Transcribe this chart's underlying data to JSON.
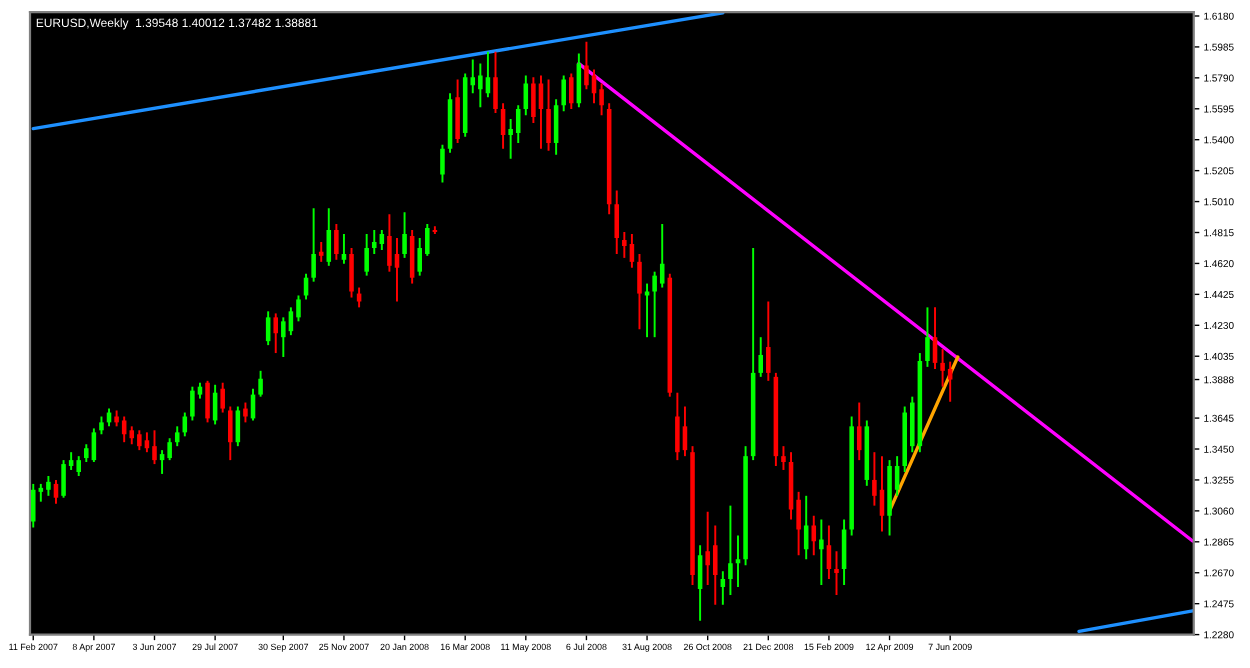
{
  "chart_data": {
    "type": "candlestick",
    "title": "EURUSD,Weekly  1.39548 1.40012 1.37482 1.38881",
    "x": [
      "2007-02-11",
      "2007-02-18",
      "2007-02-25",
      "2007-03-04",
      "2007-03-11",
      "2007-03-18",
      "2007-03-25",
      "2007-04-01",
      "2007-04-08",
      "2007-04-15",
      "2007-04-22",
      "2007-04-29",
      "2007-05-06",
      "2007-05-13",
      "2007-05-20",
      "2007-05-27",
      "2007-06-03",
      "2007-06-10",
      "2007-06-17",
      "2007-06-24",
      "2007-07-01",
      "2007-07-08",
      "2007-07-15",
      "2007-07-22",
      "2007-07-29",
      "2007-08-05",
      "2007-08-12",
      "2007-08-19",
      "2007-08-26",
      "2007-09-02",
      "2007-09-09",
      "2007-09-16",
      "2007-09-23",
      "2007-09-30",
      "2007-10-07",
      "2007-10-14",
      "2007-10-21",
      "2007-10-28",
      "2007-11-04",
      "2007-11-11",
      "2007-11-18",
      "2007-11-25",
      "2007-12-02",
      "2007-12-09",
      "2007-12-16",
      "2007-12-23",
      "2007-12-30",
      "2008-01-06",
      "2008-01-13",
      "2008-01-20",
      "2008-01-27",
      "2008-02-03",
      "2008-02-10",
      "2008-02-17",
      "2008-02-24",
      "2008-03-02",
      "2008-03-09",
      "2008-03-16",
      "2008-03-23",
      "2008-03-30",
      "2008-04-06",
      "2008-04-13",
      "2008-04-20",
      "2008-04-27",
      "2008-05-04",
      "2008-05-11",
      "2008-05-18",
      "2008-05-25",
      "2008-06-01",
      "2008-06-08",
      "2008-06-15",
      "2008-06-22",
      "2008-06-29",
      "2008-07-06",
      "2008-07-13",
      "2008-07-20",
      "2008-07-27",
      "2008-08-03",
      "2008-08-10",
      "2008-08-17",
      "2008-08-24",
      "2008-08-31",
      "2008-09-07",
      "2008-09-14",
      "2008-09-21",
      "2008-09-28",
      "2008-10-05",
      "2008-10-12",
      "2008-10-19",
      "2008-10-26",
      "2008-11-02",
      "2008-11-09",
      "2008-11-16",
      "2008-11-23",
      "2008-11-30",
      "2008-12-07",
      "2008-12-14",
      "2008-12-21",
      "2008-12-28",
      "2009-01-04",
      "2009-01-11",
      "2009-01-18",
      "2009-01-25",
      "2009-02-01",
      "2009-02-08",
      "2009-02-15",
      "2009-02-22",
      "2009-03-01",
      "2009-03-08",
      "2009-03-15",
      "2009-03-22",
      "2009-03-29",
      "2009-04-05",
      "2009-04-12",
      "2009-04-19",
      "2009-04-26",
      "2009-05-03",
      "2009-05-10",
      "2009-05-17",
      "2009-05-24",
      "2009-05-31",
      "2009-06-07"
    ],
    "ohlc": [
      [
        1.2993,
        1.323,
        1.2955,
        1.3193
      ],
      [
        1.318,
        1.323,
        1.3118,
        1.3205
      ],
      [
        1.3193,
        1.328,
        1.3155,
        1.3243
      ],
      [
        1.323,
        1.3255,
        1.3105,
        1.3143
      ],
      [
        1.3155,
        1.338,
        1.3143,
        1.3355
      ],
      [
        1.3343,
        1.343,
        1.3318,
        1.338
      ],
      [
        1.3305,
        1.3405,
        1.328,
        1.338
      ],
      [
        1.3393,
        1.348,
        1.3368,
        1.3455
      ],
      [
        1.338,
        1.358,
        1.3368,
        1.3555
      ],
      [
        1.3568,
        1.3655,
        1.3543,
        1.3618
      ],
      [
        1.3618,
        1.3705,
        1.3593,
        1.368
      ],
      [
        1.3655,
        1.3693,
        1.3593,
        1.3618
      ],
      [
        1.363,
        1.3655,
        1.3493,
        1.3543
      ],
      [
        1.3568,
        1.3593,
        1.348,
        1.3518
      ],
      [
        1.3543,
        1.3568,
        1.3443,
        1.3468
      ],
      [
        1.3505,
        1.3555,
        1.343,
        1.3455
      ],
      [
        1.3468,
        1.3568,
        1.3355,
        1.338
      ],
      [
        1.338,
        1.3443,
        1.3293,
        1.3418
      ],
      [
        1.3393,
        1.3518,
        1.338,
        1.3493
      ],
      [
        1.3493,
        1.3593,
        1.3468,
        1.3555
      ],
      [
        1.3555,
        1.368,
        1.353,
        1.3655
      ],
      [
        1.3655,
        1.3843,
        1.363,
        1.3818
      ],
      [
        1.3793,
        1.3868,
        1.3768,
        1.3843
      ],
      [
        1.3868,
        1.388,
        1.3618,
        1.3643
      ],
      [
        1.363,
        1.3855,
        1.3605,
        1.3805
      ],
      [
        1.383,
        1.3868,
        1.368,
        1.3705
      ],
      [
        1.3693,
        1.3718,
        1.338,
        1.3493
      ],
      [
        1.3493,
        1.3718,
        1.3468,
        1.3693
      ],
      [
        1.3705,
        1.3743,
        1.3618,
        1.3655
      ],
      [
        1.3643,
        1.383,
        1.363,
        1.3793
      ],
      [
        1.3793,
        1.3943,
        1.378,
        1.3893
      ],
      [
        1.413,
        1.4318,
        1.4105,
        1.428
      ],
      [
        1.428,
        1.4305,
        1.4055,
        1.418
      ],
      [
        1.4155,
        1.428,
        1.403,
        1.4255
      ],
      [
        1.4193,
        1.4343,
        1.4168,
        1.4318
      ],
      [
        1.428,
        1.4418,
        1.4255,
        1.4393
      ],
      [
        1.4418,
        1.4555,
        1.4393,
        1.453
      ],
      [
        1.453,
        1.4968,
        1.4505,
        1.468
      ],
      [
        1.4693,
        1.4755,
        1.463,
        1.4668
      ],
      [
        1.463,
        1.4968,
        1.4605,
        1.483
      ],
      [
        1.483,
        1.4868,
        1.4643,
        1.468
      ],
      [
        1.4643,
        1.4805,
        1.4618,
        1.468
      ],
      [
        1.468,
        1.4718,
        1.4405,
        1.4443
      ],
      [
        1.443,
        1.4468,
        1.4343,
        1.438
      ],
      [
        1.4568,
        1.4805,
        1.4543,
        1.4718
      ],
      [
        1.4718,
        1.483,
        1.468,
        1.4755
      ],
      [
        1.4743,
        1.483,
        1.4705,
        1.4805
      ],
      [
        1.4793,
        1.493,
        1.4568,
        1.4605
      ],
      [
        1.468,
        1.478,
        1.438,
        1.4593
      ],
      [
        1.468,
        1.4943,
        1.4655,
        1.4805
      ],
      [
        1.4793,
        1.483,
        1.4493,
        1.453
      ],
      [
        1.4568,
        1.478,
        1.4543,
        1.4718
      ],
      [
        1.468,
        1.4868,
        1.4668,
        1.4843
      ],
      [
        1.483,
        1.4855,
        1.4805,
        1.4818
      ],
      [
        1.518,
        1.5368,
        1.513,
        1.5343
      ],
      [
        1.5343,
        1.5693,
        1.5318,
        1.5655
      ],
      [
        1.5668,
        1.578,
        1.538,
        1.5405
      ],
      [
        1.5443,
        1.5818,
        1.5418,
        1.5793
      ],
      [
        1.5743,
        1.5905,
        1.5693,
        1.5793
      ],
      [
        1.5718,
        1.588,
        1.5605,
        1.5805
      ],
      [
        1.5693,
        1.5955,
        1.5668,
        1.5793
      ],
      [
        1.5793,
        1.5955,
        1.5568,
        1.5593
      ],
      [
        1.5593,
        1.563,
        1.5343,
        1.543
      ],
      [
        1.543,
        1.553,
        1.528,
        1.5468
      ],
      [
        1.5443,
        1.5618,
        1.538,
        1.5593
      ],
      [
        1.5593,
        1.5805,
        1.5555,
        1.5755
      ],
      [
        1.5755,
        1.5793,
        1.5505,
        1.5543
      ],
      [
        1.5755,
        1.5805,
        1.5343,
        1.5593
      ],
      [
        1.5593,
        1.578,
        1.533,
        1.538
      ],
      [
        1.538,
        1.5655,
        1.5305,
        1.5618
      ],
      [
        1.5618,
        1.5805,
        1.558,
        1.578
      ],
      [
        1.5793,
        1.5818,
        1.5593,
        1.563
      ],
      [
        1.563,
        1.5943,
        1.5605,
        1.588
      ],
      [
        1.5868,
        1.6018,
        1.5718,
        1.5743
      ],
      [
        1.5805,
        1.5843,
        1.563,
        1.5693
      ],
      [
        1.5718,
        1.5755,
        1.5555,
        1.5618
      ],
      [
        1.5593,
        1.563,
        1.493,
        1.4993
      ],
      [
        1.4993,
        1.508,
        1.468,
        1.478
      ],
      [
        1.4768,
        1.4818,
        1.4655,
        1.473
      ],
      [
        1.4743,
        1.4805,
        1.4593,
        1.463
      ],
      [
        1.463,
        1.468,
        1.4205,
        1.443
      ],
      [
        1.4418,
        1.4493,
        1.4155,
        1.4443
      ],
      [
        1.4443,
        1.4568,
        1.4155,
        1.4543
      ],
      [
        1.4493,
        1.4868,
        1.4468,
        1.4618
      ],
      [
        1.453,
        1.4555,
        1.378,
        1.3805
      ],
      [
        1.3655,
        1.3805,
        1.338,
        1.343
      ],
      [
        1.3593,
        1.3718,
        1.3405,
        1.3443
      ],
      [
        1.343,
        1.3468,
        1.2593,
        1.2655
      ],
      [
        1.2568,
        1.2843,
        1.2368,
        1.278
      ],
      [
        1.2805,
        1.3055,
        1.2593,
        1.2718
      ],
      [
        1.2843,
        1.2968,
        1.2468,
        1.2655
      ],
      [
        1.258,
        1.268,
        1.2468,
        1.263
      ],
      [
        1.263,
        1.3093,
        1.253,
        1.273
      ],
      [
        1.273,
        1.2905,
        1.258,
        1.2755
      ],
      [
        1.2755,
        1.3468,
        1.2718,
        1.3405
      ],
      [
        1.3405,
        1.4718,
        1.338,
        1.393
      ],
      [
        1.393,
        1.4155,
        1.3905,
        1.4043
      ],
      [
        1.4093,
        1.438,
        1.388,
        1.393
      ],
      [
        1.3905,
        1.393,
        1.3343,
        1.3405
      ],
      [
        1.3405,
        1.3468,
        1.3318,
        1.3368
      ],
      [
        1.3368,
        1.343,
        1.3005,
        1.3068
      ],
      [
        1.313,
        1.318,
        1.278,
        1.2943
      ],
      [
        1.2818,
        1.3155,
        1.2755,
        1.2968
      ],
      [
        1.2968,
        1.303,
        1.278,
        1.2868
      ],
      [
        1.2818,
        1.3005,
        1.2593,
        1.288
      ],
      [
        1.2843,
        1.2968,
        1.263,
        1.2693
      ],
      [
        1.2693,
        1.2805,
        1.253,
        1.2668
      ],
      [
        1.2693,
        1.3005,
        1.2593,
        1.2943
      ],
      [
        1.2943,
        1.3655,
        1.2905,
        1.3593
      ],
      [
        1.3593,
        1.3743,
        1.338,
        1.3443
      ],
      [
        1.3255,
        1.363,
        1.3218,
        1.3593
      ],
      [
        1.3255,
        1.343,
        1.3093,
        1.3155
      ],
      [
        1.3193,
        1.3405,
        1.293,
        1.303
      ],
      [
        1.303,
        1.338,
        1.2905,
        1.3343
      ],
      [
        1.3193,
        1.3405,
        1.3155,
        1.3343
      ],
      [
        1.3343,
        1.3718,
        1.3305,
        1.368
      ],
      [
        1.3468,
        1.378,
        1.343,
        1.3743
      ],
      [
        1.3468,
        1.4055,
        1.343,
        1.4005
      ],
      [
        1.4005,
        1.4343,
        1.3968,
        1.4155
      ],
      [
        1.4155,
        1.4343,
        1.3955,
        1.3993
      ],
      [
        1.3993,
        1.408,
        1.3843,
        1.3943
      ],
      [
        1.3955,
        1.4001,
        1.3748,
        1.3888
      ]
    ],
    "series": [
      {
        "type": "line",
        "color": "#1e90ff",
        "x": [
          "2007-02-11",
          "2008-11-09"
        ],
        "values": [
          1.547,
          1.62
        ]
      },
      {
        "type": "line",
        "color": "#1e90ff",
        "x": [
          "2009-10-04",
          "2010-01-17"
        ],
        "values": [
          1.23,
          1.243
        ]
      },
      {
        "type": "line",
        "color": "#ff00ff",
        "x": [
          "2008-06-29",
          "2010-01-17"
        ],
        "values": [
          1.588,
          1.287
        ]
      },
      {
        "type": "line",
        "color": "#ffa500",
        "x": [
          "2009-04-12",
          "2009-06-14"
        ],
        "values": [
          1.306,
          1.403
        ]
      }
    ],
    "xlim": [
      "2007-02-08",
      "2010-01-18"
    ],
    "xticks": [
      {
        "value": "2007-02-11",
        "label": "11 Feb 2007"
      },
      {
        "value": "2007-04-08",
        "label": "8 Apr 2007"
      },
      {
        "value": "2007-06-03",
        "label": "3 Jun 2007"
      },
      {
        "value": "2007-07-29",
        "label": "29 Jul 2007"
      },
      {
        "value": "2007-09-30",
        "label": "30 Sep 2007"
      },
      {
        "value": "2007-11-25",
        "label": "25 Nov 2007"
      },
      {
        "value": "2008-01-20",
        "label": "20 Jan 2008"
      },
      {
        "value": "2008-03-16",
        "label": "16 Mar 2008"
      },
      {
        "value": "2008-05-11",
        "label": "11 May 2008"
      },
      {
        "value": "2008-07-06",
        "label": "6 Jul 2008"
      },
      {
        "value": "2008-08-31",
        "label": "31 Aug 2008"
      },
      {
        "value": "2008-10-26",
        "label": "26 Oct 2008"
      },
      {
        "value": "2008-12-21",
        "label": "21 Dec 2008"
      },
      {
        "value": "2009-02-15",
        "label": "15 Feb 2009"
      },
      {
        "value": "2009-04-12",
        "label": "12 Apr 2009"
      },
      {
        "value": "2009-06-07",
        "label": "7 Jun 2009"
      }
    ],
    "ylim": [
      1.228,
      1.6205
    ],
    "yticks": [
      {
        "value": 1.618,
        "label": "1.6180"
      },
      {
        "value": 1.5985,
        "label": "1.5985"
      },
      {
        "value": 1.579,
        "label": "1.5790"
      },
      {
        "value": 1.5595,
        "label": "1.5595"
      },
      {
        "value": 1.54,
        "label": "1.5400"
      },
      {
        "value": 1.5205,
        "label": "1.5205"
      },
      {
        "value": 1.501,
        "label": "1.5010"
      },
      {
        "value": 1.4815,
        "label": "1.4815"
      },
      {
        "value": 1.462,
        "label": "1.4620"
      },
      {
        "value": 1.4425,
        "label": "1.4425"
      },
      {
        "value": 1.423,
        "label": "1.4230"
      },
      {
        "value": 1.4035,
        "label": "1.4035"
      },
      {
        "value": 1.3888,
        "label": "1.3888"
      },
      {
        "value": 1.3645,
        "label": "1.3645"
      },
      {
        "value": 1.345,
        "label": "1.3450"
      },
      {
        "value": 1.3255,
        "label": "1.3255"
      },
      {
        "value": 1.306,
        "label": "1.3060"
      },
      {
        "value": 1.2865,
        "label": "1.2865"
      },
      {
        "value": 1.267,
        "label": "1.2670"
      },
      {
        "value": 1.2475,
        "label": "1.2475"
      },
      {
        "value": 1.228,
        "label": "1.2280"
      }
    ],
    "grid": false,
    "legend": false
  }
}
